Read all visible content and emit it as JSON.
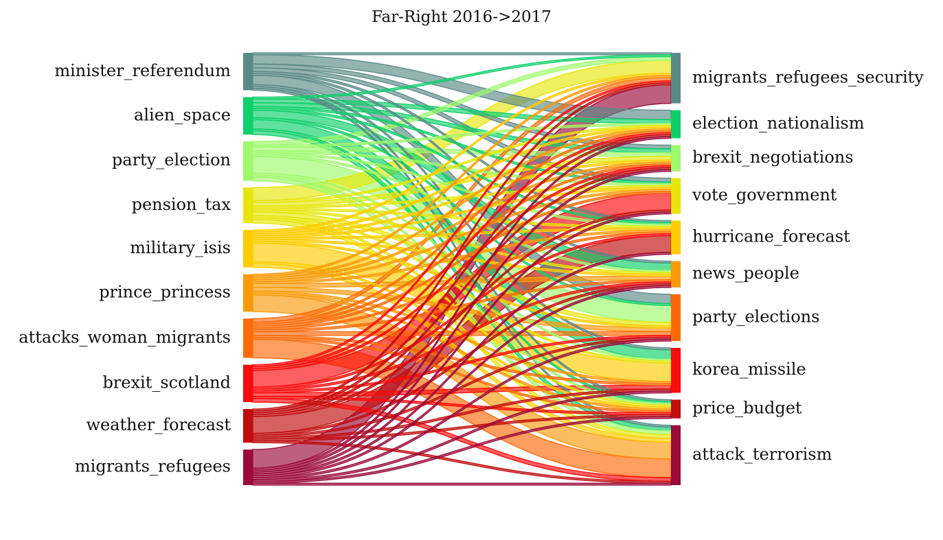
{
  "chart_data": {
    "type": "sankey",
    "title": "Far-Right 2016->2017",
    "sources": [
      {
        "name": "minister_referendum",
        "color": "#5a8a87"
      },
      {
        "name": "alien_space",
        "color": "#0ecf6a"
      },
      {
        "name": "party_election",
        "color": "#9efa6c"
      },
      {
        "name": "pension_tax",
        "color": "#e6e60a"
      },
      {
        "name": "military_isis",
        "color": "#ffcc00"
      },
      {
        "name": "prince_princess",
        "color": "#fa9a0a"
      },
      {
        "name": "attacks_woman_migrants",
        "color": "#fd6a0a"
      },
      {
        "name": "brexit_scotland",
        "color": "#fa0a0a"
      },
      {
        "name": "weather_forecast",
        "color": "#c00d0d"
      },
      {
        "name": "migrants_refugees",
        "color": "#9a0a3a"
      }
    ],
    "targets": [
      {
        "name": "migrants_refugees_security",
        "color": "#5a8a87"
      },
      {
        "name": "election_nationalism",
        "color": "#0ecf6a"
      },
      {
        "name": "brexit_negotiations",
        "color": "#9efa6c"
      },
      {
        "name": "vote_government",
        "color": "#e6e60a"
      },
      {
        "name": "hurricane_forecast",
        "color": "#ffcc00"
      },
      {
        "name": "news_people",
        "color": "#fa9a0a"
      },
      {
        "name": "party_elections",
        "color": "#fd6a0a"
      },
      {
        "name": "korea_missile",
        "color": "#fa0a0a"
      },
      {
        "name": "price_budget",
        "color": "#c00d0d"
      },
      {
        "name": "attack_terrorism",
        "color": "#9a0a3a"
      }
    ],
    "flows": [
      {
        "source": "minister_referendum",
        "target": "migrants_refugees_security",
        "value": 1
      },
      {
        "source": "minister_referendum",
        "target": "election_nationalism",
        "value": 5
      },
      {
        "source": "minister_referendum",
        "target": "brexit_negotiations",
        "value": 2
      },
      {
        "source": "minister_referendum",
        "target": "vote_government",
        "value": 2
      },
      {
        "source": "minister_referendum",
        "target": "hurricane_forecast",
        "value": 1
      },
      {
        "source": "minister_referendum",
        "target": "news_people",
        "value": 1
      },
      {
        "source": "minister_referendum",
        "target": "party_elections",
        "value": 5
      },
      {
        "source": "minister_referendum",
        "target": "korea_missile",
        "value": 1
      },
      {
        "source": "minister_referendum",
        "target": "price_budget",
        "value": 1
      },
      {
        "source": "minister_referendum",
        "target": "attack_terrorism",
        "value": 1
      },
      {
        "source": "alien_space",
        "target": "migrants_refugees_security",
        "value": 1
      },
      {
        "source": "alien_space",
        "target": "election_nationalism",
        "value": 2
      },
      {
        "source": "alien_space",
        "target": "brexit_negotiations",
        "value": 2
      },
      {
        "source": "alien_space",
        "target": "vote_government",
        "value": 1
      },
      {
        "source": "alien_space",
        "target": "hurricane_forecast",
        "value": 1
      },
      {
        "source": "alien_space",
        "target": "news_people",
        "value": 4
      },
      {
        "source": "alien_space",
        "target": "party_elections",
        "value": 1
      },
      {
        "source": "alien_space",
        "target": "korea_missile",
        "value": 5
      },
      {
        "source": "alien_space",
        "target": "price_budget",
        "value": 1
      },
      {
        "source": "alien_space",
        "target": "attack_terrorism",
        "value": 2
      },
      {
        "source": "party_election",
        "target": "migrants_refugees_security",
        "value": 2
      },
      {
        "source": "party_election",
        "target": "election_nationalism",
        "value": 1
      },
      {
        "source": "party_election",
        "target": "brexit_negotiations",
        "value": 2
      },
      {
        "source": "party_election",
        "target": "vote_government",
        "value": 1
      },
      {
        "source": "party_election",
        "target": "hurricane_forecast",
        "value": 1
      },
      {
        "source": "party_election",
        "target": "news_people",
        "value": 1
      },
      {
        "source": "party_election",
        "target": "party_elections",
        "value": 9
      },
      {
        "source": "party_election",
        "target": "korea_missile",
        "value": 1
      },
      {
        "source": "party_election",
        "target": "price_budget",
        "value": 1
      },
      {
        "source": "party_election",
        "target": "attack_terrorism",
        "value": 2
      },
      {
        "source": "pension_tax",
        "target": "migrants_refugees_security",
        "value": 7
      },
      {
        "source": "pension_tax",
        "target": "election_nationalism",
        "value": 1
      },
      {
        "source": "pension_tax",
        "target": "brexit_negotiations",
        "value": 2
      },
      {
        "source": "pension_tax",
        "target": "vote_government",
        "value": 1
      },
      {
        "source": "pension_tax",
        "target": "hurricane_forecast",
        "value": 1
      },
      {
        "source": "pension_tax",
        "target": "news_people",
        "value": 1
      },
      {
        "source": "pension_tax",
        "target": "party_elections",
        "value": 2
      },
      {
        "source": "pension_tax",
        "target": "korea_missile",
        "value": 1
      },
      {
        "source": "pension_tax",
        "target": "price_budget",
        "value": 1
      },
      {
        "source": "pension_tax",
        "target": "attack_terrorism",
        "value": 2
      },
      {
        "source": "military_isis",
        "target": "migrants_refugees_security",
        "value": 1
      },
      {
        "source": "military_isis",
        "target": "election_nationalism",
        "value": 1
      },
      {
        "source": "military_isis",
        "target": "brexit_negotiations",
        "value": 1
      },
      {
        "source": "military_isis",
        "target": "vote_government",
        "value": 1
      },
      {
        "source": "military_isis",
        "target": "hurricane_forecast",
        "value": 1
      },
      {
        "source": "military_isis",
        "target": "news_people",
        "value": 1
      },
      {
        "source": "military_isis",
        "target": "party_elections",
        "value": 1
      },
      {
        "source": "military_isis",
        "target": "korea_missile",
        "value": 10
      },
      {
        "source": "military_isis",
        "target": "price_budget",
        "value": 1
      },
      {
        "source": "military_isis",
        "target": "attack_terrorism",
        "value": 2
      },
      {
        "source": "prince_princess",
        "target": "migrants_refugees_security",
        "value": 1
      },
      {
        "source": "prince_princess",
        "target": "election_nationalism",
        "value": 1
      },
      {
        "source": "prince_princess",
        "target": "brexit_negotiations",
        "value": 1
      },
      {
        "source": "prince_princess",
        "target": "vote_government",
        "value": 1
      },
      {
        "source": "prince_princess",
        "target": "hurricane_forecast",
        "value": 1
      },
      {
        "source": "prince_princess",
        "target": "news_people",
        "value": 2
      },
      {
        "source": "prince_princess",
        "target": "party_elections",
        "value": 2
      },
      {
        "source": "prince_princess",
        "target": "korea_missile",
        "value": 1
      },
      {
        "source": "prince_princess",
        "target": "price_budget",
        "value": 1
      },
      {
        "source": "prince_princess",
        "target": "attack_terrorism",
        "value": 9
      },
      {
        "source": "attacks_woman_migrants",
        "target": "migrants_refugees_security",
        "value": 2
      },
      {
        "source": "attacks_woman_migrants",
        "target": "election_nationalism",
        "value": 1
      },
      {
        "source": "attacks_woman_migrants",
        "target": "brexit_negotiations",
        "value": 1
      },
      {
        "source": "attacks_woman_migrants",
        "target": "vote_government",
        "value": 1
      },
      {
        "source": "attacks_woman_migrants",
        "target": "hurricane_forecast",
        "value": 1
      },
      {
        "source": "attacks_woman_migrants",
        "target": "news_people",
        "value": 1
      },
      {
        "source": "attacks_woman_migrants",
        "target": "party_elections",
        "value": 2
      },
      {
        "source": "attacks_woman_migrants",
        "target": "korea_missile",
        "value": 1
      },
      {
        "source": "attacks_woman_migrants",
        "target": "price_budget",
        "value": 1
      },
      {
        "source": "attacks_woman_migrants",
        "target": "attack_terrorism",
        "value": 10
      },
      {
        "source": "brexit_scotland",
        "target": "migrants_refugees_security",
        "value": 1
      },
      {
        "source": "brexit_scotland",
        "target": "election_nationalism",
        "value": 1
      },
      {
        "source": "brexit_scotland",
        "target": "brexit_negotiations",
        "value": 1
      },
      {
        "source": "brexit_scotland",
        "target": "vote_government",
        "value": 9
      },
      {
        "source": "brexit_scotland",
        "target": "hurricane_forecast",
        "value": 1
      },
      {
        "source": "brexit_scotland",
        "target": "news_people",
        "value": 1
      },
      {
        "source": "brexit_scotland",
        "target": "party_elections",
        "value": 1
      },
      {
        "source": "brexit_scotland",
        "target": "korea_missile",
        "value": 2
      },
      {
        "source": "brexit_scotland",
        "target": "price_budget",
        "value": 1
      },
      {
        "source": "brexit_scotland",
        "target": "attack_terrorism",
        "value": 2
      },
      {
        "source": "weather_forecast",
        "target": "migrants_refugees_security",
        "value": 1
      },
      {
        "source": "weather_forecast",
        "target": "election_nationalism",
        "value": 1
      },
      {
        "source": "weather_forecast",
        "target": "brexit_negotiations",
        "value": 1
      },
      {
        "source": "weather_forecast",
        "target": "vote_government",
        "value": 1
      },
      {
        "source": "weather_forecast",
        "target": "hurricane_forecast",
        "value": 9
      },
      {
        "source": "weather_forecast",
        "target": "news_people",
        "value": 1
      },
      {
        "source": "weather_forecast",
        "target": "party_elections",
        "value": 1
      },
      {
        "source": "weather_forecast",
        "target": "korea_missile",
        "value": 1
      },
      {
        "source": "weather_forecast",
        "target": "price_budget",
        "value": 1
      },
      {
        "source": "weather_forecast",
        "target": "attack_terrorism",
        "value": 1
      },
      {
        "source": "migrants_refugees",
        "target": "migrants_refugees_security",
        "value": 10
      },
      {
        "source": "migrants_refugees",
        "target": "election_nationalism",
        "value": 1
      },
      {
        "source": "migrants_refugees",
        "target": "brexit_negotiations",
        "value": 1
      },
      {
        "source": "migrants_refugees",
        "target": "vote_government",
        "value": 1
      },
      {
        "source": "migrants_refugees",
        "target": "hurricane_forecast",
        "value": 1
      },
      {
        "source": "migrants_refugees",
        "target": "news_people",
        "value": 1
      },
      {
        "source": "migrants_refugees",
        "target": "party_elections",
        "value": 1
      },
      {
        "source": "migrants_refugees",
        "target": "korea_missile",
        "value": 1
      },
      {
        "source": "migrants_refugees",
        "target": "price_budget",
        "value": 1
      },
      {
        "source": "migrants_refugees",
        "target": "attack_terrorism",
        "value": 1
      }
    ]
  }
}
